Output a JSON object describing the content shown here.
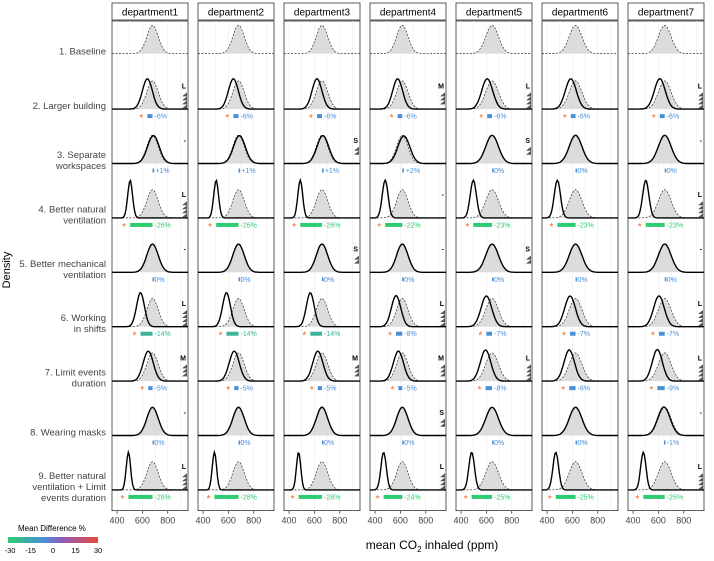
{
  "chart_data": {
    "type": "density-facet-grid",
    "y_axis_title": "Density",
    "x_axis_title": "mean CO",
    "x_axis_title_sub": "2",
    "x_axis_title_suffix": " inhaled (ppm)",
    "x_ticks": [
      400,
      600,
      800
    ],
    "xlim": [
      360,
      960
    ],
    "departments": [
      "department1",
      "department2",
      "department3",
      "department4",
      "department5",
      "department6",
      "department7"
    ],
    "scenarios": [
      "1. Baseline",
      "2. Larger building",
      "3. Separate|workspaces",
      "4. Better natural|ventilation",
      "5. Better mechanical|ventilation",
      "6. Working|in shifts",
      "7. Limit events|duration",
      "8. Wearing masks",
      "9. Better natural|ventilation + Limit|events duration"
    ],
    "baseline_means": [
      680,
      680,
      660,
      615,
      645,
      625,
      650
    ],
    "baseline_sds": [
      45,
      45,
      45,
      45,
      50,
      50,
      50
    ],
    "diff_pct": [
      [
        null,
        null,
        null,
        null,
        null,
        null,
        null
      ],
      [
        -6,
        -6,
        -6,
        -6,
        -6,
        -6,
        -6
      ],
      [
        1,
        1,
        1,
        2,
        0,
        0,
        0
      ],
      [
        -26,
        -26,
        -26,
        -22,
        -23,
        -23,
        -23
      ],
      [
        0,
        0,
        0,
        0,
        0,
        0,
        0
      ],
      [
        -14,
        -14,
        -14,
        -8,
        -7,
        -7,
        -7
      ],
      [
        -5,
        -5,
        -5,
        -5,
        -8,
        -8,
        -9
      ],
      [
        0,
        0,
        0,
        0,
        0,
        0,
        -1
      ],
      [
        -28,
        -28,
        -28,
        -24,
        -25,
        -25,
        -26
      ]
    ],
    "diff_labels": [
      [
        "",
        "",
        "",
        "",
        "",
        "",
        ""
      ],
      [
        "-6%",
        "-6%",
        "-6%",
        "-6%",
        "-6%",
        "-6%",
        "-6%"
      ],
      [
        "+1%",
        "+1%",
        "+1%",
        "+2%",
        "0%",
        "0%",
        "0%"
      ],
      [
        "-26%",
        "-26%",
        "-26%",
        "-22%",
        "-23%",
        "-23%",
        "-23%"
      ],
      [
        "0%",
        "0%",
        "0%",
        "0%",
        "0%",
        "0%",
        "0%"
      ],
      [
        "-14%",
        "-14%",
        "-14%",
        "-8%",
        "-7%",
        "-7%",
        "-7%"
      ],
      [
        "-5%",
        "-5%",
        "-5%",
        "-5%",
        "-8%",
        "-8%",
        "-9%"
      ],
      [
        "0%",
        "0%",
        "0%",
        "0%",
        "0%",
        "0%",
        "-1%"
      ],
      [
        "-28%",
        "-28%",
        "-28%",
        "-24%",
        "-25%",
        "-25%",
        "-26%"
      ]
    ],
    "significant": [
      [
        false,
        false,
        false,
        false,
        false,
        false,
        false
      ],
      [
        true,
        true,
        true,
        true,
        true,
        true,
        true
      ],
      [
        false,
        false,
        false,
        false,
        false,
        false,
        false
      ],
      [
        true,
        true,
        true,
        true,
        true,
        true,
        true
      ],
      [
        false,
        false,
        false,
        false,
        false,
        false,
        false
      ],
      [
        true,
        true,
        true,
        true,
        true,
        true,
        true
      ],
      [
        true,
        true,
        true,
        true,
        true,
        true,
        true
      ],
      [
        false,
        false,
        false,
        false,
        false,
        false,
        false
      ],
      [
        true,
        true,
        true,
        true,
        true,
        true,
        true
      ]
    ],
    "effect_size_marks": [
      [
        "",
        "",
        "",
        "",
        "",
        "",
        ""
      ],
      [
        "L",
        "",
        "",
        "M",
        "L",
        "",
        "L"
      ],
      [
        "-",
        "",
        "S",
        "",
        "S",
        "",
        "-"
      ],
      [
        "L",
        "",
        "",
        "-",
        "",
        "",
        "L"
      ],
      [
        "-",
        "",
        "S",
        "-",
        "S",
        "",
        "-"
      ],
      [
        "L",
        "",
        "",
        "L",
        "",
        "",
        "L"
      ],
      [
        "M",
        "",
        "M",
        "M",
        "L",
        "",
        "L"
      ],
      [
        "-",
        "",
        "",
        "S",
        "",
        "",
        "-"
      ],
      [
        "L",
        "",
        "",
        "L",
        "",
        "",
        "L"
      ]
    ],
    "legend": {
      "title": "Mean Difference %",
      "ticks": [
        "-30",
        "-15",
        "0",
        "15",
        "30"
      ],
      "colors": [
        "#2ecc71",
        "#4a90d9",
        "#8e5bb5",
        "#e74c3c"
      ]
    },
    "colors": {
      "baseline_fill": "#dcdcdc",
      "curve": "#000000",
      "marker": "#f26522",
      "panel_border": "#333333",
      "grid": "#ebebeb"
    }
  }
}
